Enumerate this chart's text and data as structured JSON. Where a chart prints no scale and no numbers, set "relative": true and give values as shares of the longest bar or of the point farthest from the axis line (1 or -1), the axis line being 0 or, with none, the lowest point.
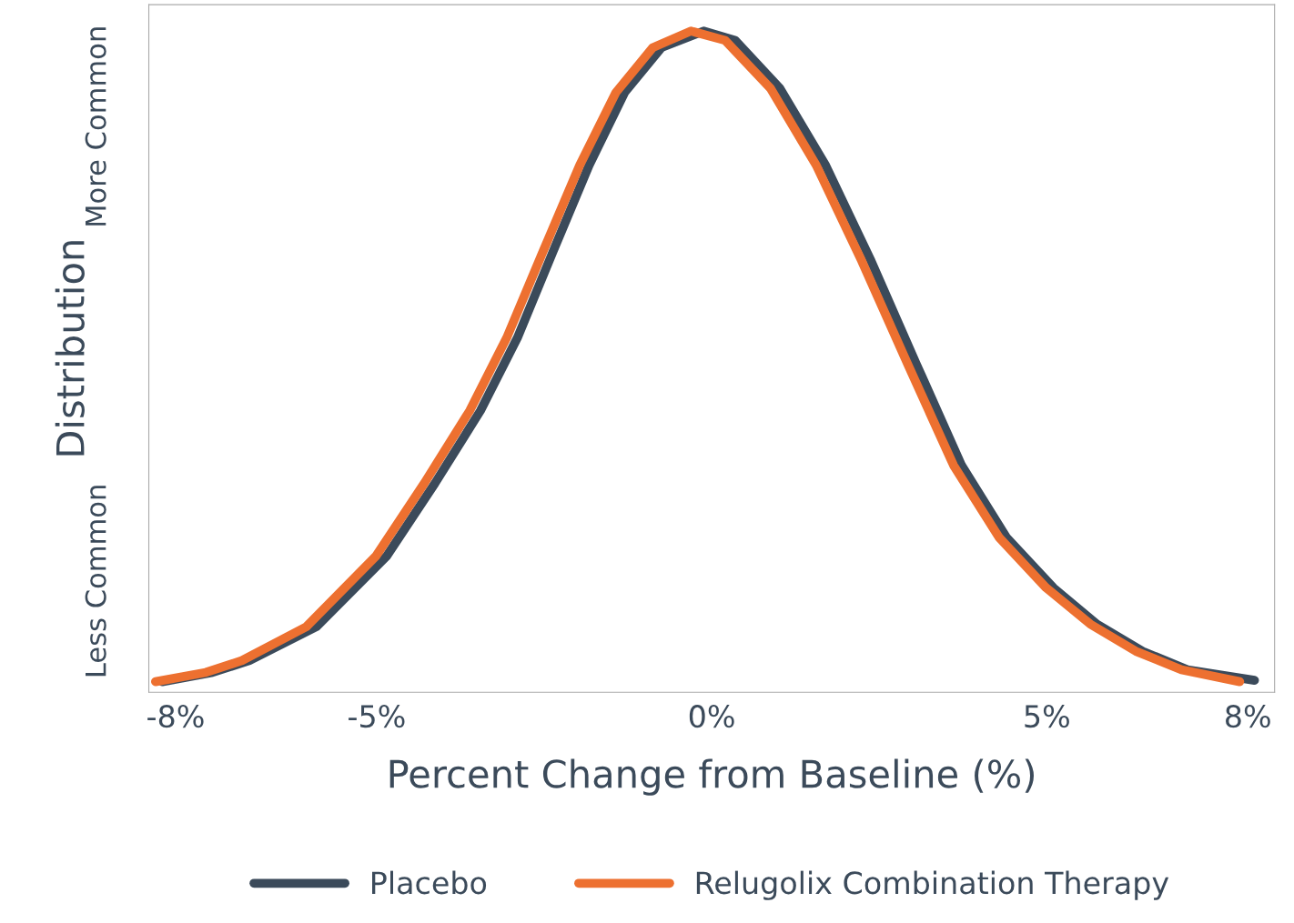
{
  "chart_data": {
    "type": "line",
    "relative": true,
    "xlabel": "Percent Change from Baseline (%)",
    "ylabel": "Distribution",
    "annotations": [
      "More Common",
      "Less Common"
    ],
    "xlim": [
      -8.4,
      8.4
    ],
    "xticks": [
      {
        "value": -8,
        "label": "-8%"
      },
      {
        "value": -5,
        "label": "-5%"
      },
      {
        "value": 0,
        "label": "0%"
      },
      {
        "value": 5,
        "label": "5%"
      },
      {
        "value": 8,
        "label": "8%"
      }
    ],
    "grid": false,
    "legend": "bottom",
    "marker": "none",
    "line_style": "solid",
    "series": [
      {
        "name": "Placebo",
        "color": "#3b4a5a",
        "x": [
          -8.2,
          -7.45,
          -6.9,
          -5.9,
          -4.85,
          -4.13,
          -3.45,
          -2.9,
          -2.37,
          -1.83,
          -1.3,
          -0.75,
          -0.12,
          0.35,
          1.02,
          1.7,
          2.38,
          3.06,
          3.73,
          4.4,
          5.1,
          5.75,
          6.43,
          7.1,
          8.1
        ],
        "values": [
          0.016,
          0.03,
          0.048,
          0.099,
          0.206,
          0.316,
          0.426,
          0.536,
          0.666,
          0.797,
          0.907,
          0.975,
          1.0,
          0.986,
          0.913,
          0.797,
          0.652,
          0.495,
          0.343,
          0.234,
          0.158,
          0.103,
          0.062,
          0.034,
          0.018
        ]
      },
      {
        "name": "Relugolix Combination Therapy",
        "color": "#ed7030",
        "x": [
          -8.3,
          -7.55,
          -7.01,
          -6.05,
          -5.01,
          -4.29,
          -3.61,
          -3.06,
          -2.52,
          -1.97,
          -1.43,
          -0.88,
          -0.31,
          0.2,
          0.88,
          1.56,
          2.24,
          2.93,
          3.61,
          4.29,
          4.99,
          5.65,
          6.33,
          7.01,
          7.88
        ],
        "values": [
          0.016,
          0.03,
          0.048,
          0.099,
          0.206,
          0.316,
          0.426,
          0.536,
          0.666,
          0.797,
          0.907,
          0.975,
          1.0,
          0.986,
          0.913,
          0.797,
          0.652,
          0.495,
          0.343,
          0.234,
          0.158,
          0.103,
          0.062,
          0.034,
          0.016
        ]
      }
    ]
  }
}
